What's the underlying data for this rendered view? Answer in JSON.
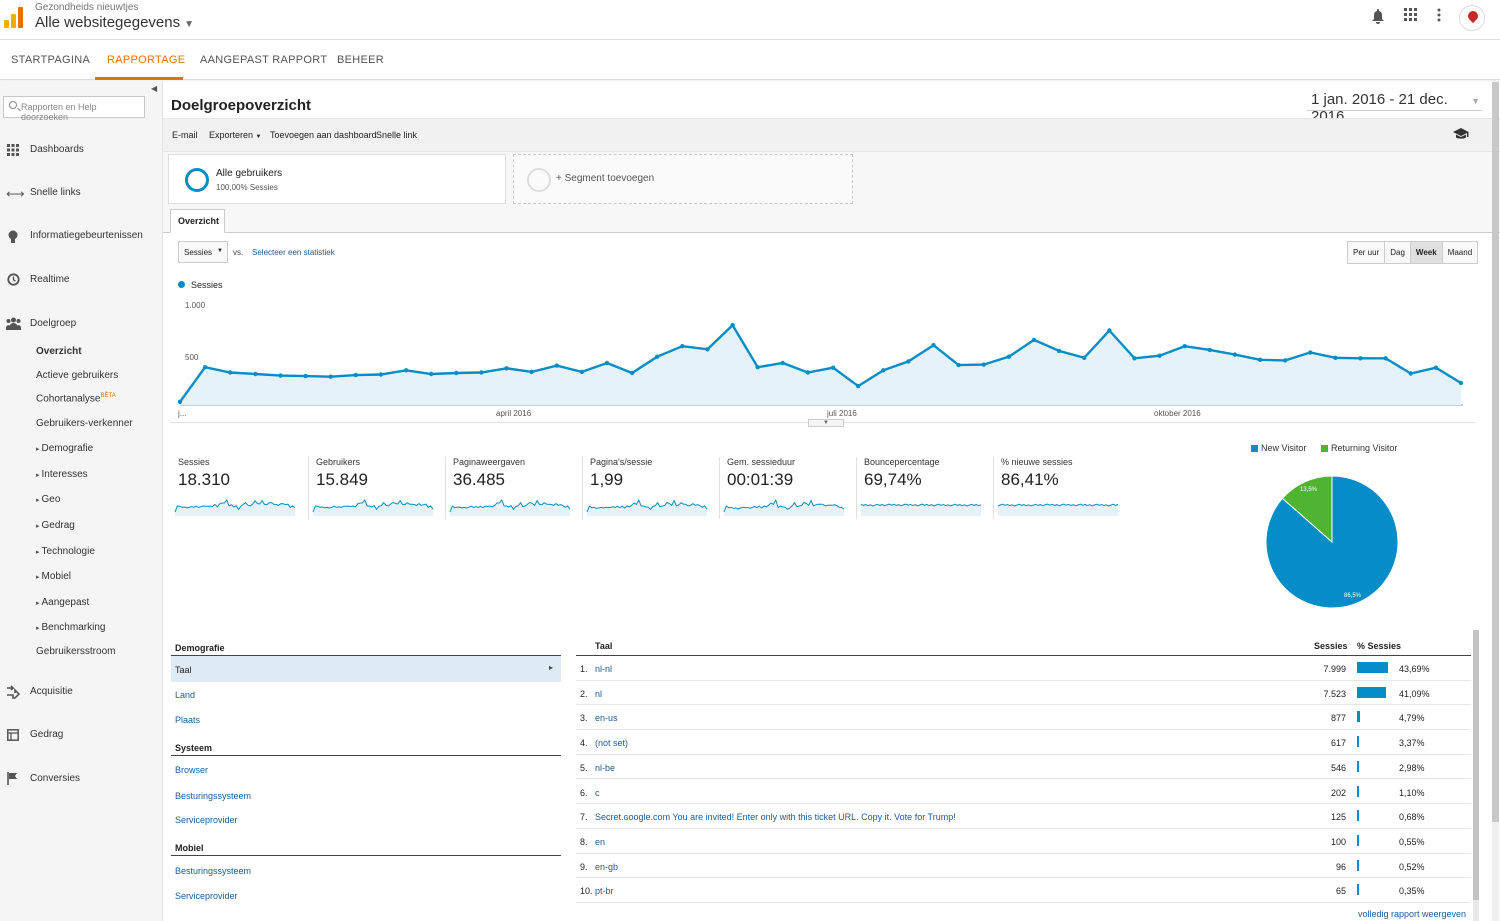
{
  "app": {
    "property_small": "Gezondheids nieuwtjes",
    "property_big": "Alle websitegegevens",
    "brand_colors": {
      "bar1": "#f9ab00",
      "bar2": "#e37400",
      "accent": "#e37400",
      "series": "#058dc7",
      "returning": "#50b432"
    }
  },
  "navtabs": [
    "STARTPAGINA",
    "RAPPORTAGE",
    "AANGEPAST RAPPORT",
    "BEHEER"
  ],
  "sidebar": {
    "search_placeholder": "Rapporten en Help doorzoeken",
    "main": [
      {
        "label": "Dashboards",
        "icon": "grid-icon"
      },
      {
        "label": "Snelle links",
        "icon": "shortcut-arrow-icon"
      },
      {
        "label": "Informatiegebeurtenissen",
        "icon": "lightbulb-icon"
      },
      {
        "label": "Realtime",
        "icon": "clock-icon"
      },
      {
        "label": "Doelgroep",
        "icon": "people-icon"
      }
    ],
    "sub": {
      "overview": "Overzicht",
      "active_users": "Actieve gebruikers",
      "cohort": "Cohortanalyse",
      "cohort_beta": "BÈTA",
      "explorer": "Gebruikers-verkenner",
      "demografie": "Demografie",
      "interesses": "Interesses",
      "geo": "Geo",
      "gedrag": "Gedrag",
      "technologie": "Technologie",
      "mobiel": "Mobiel",
      "aangepast": "Aangepast",
      "benchmarking": "Benchmarking",
      "stroom": "Gebruikersstroom"
    },
    "bottom": [
      {
        "label": "Acquisitie",
        "icon": "acquisition-icon"
      },
      {
        "label": "Gedrag",
        "icon": "behavior-icon"
      },
      {
        "label": "Conversies",
        "icon": "flag-icon"
      }
    ]
  },
  "main": {
    "title": "Doelgroepoverzicht",
    "daterange": "1 jan. 2016 - 21 dec. 2016",
    "toolbar": [
      "E-mail",
      "Exporteren",
      "Toevoegen aan dashboard",
      "Snelle link"
    ],
    "segment1": {
      "title": "Alle gebruikers",
      "sub": "100,00% Sessies"
    },
    "segment2": "+ Segment toevoegen",
    "tab": "Overzicht",
    "metric_select": "Sessies",
    "vs": "vs.",
    "select_stat": "Selecteer een statistiek",
    "granularity": [
      "Per uur",
      "Dag",
      "Week",
      "Maand"
    ]
  },
  "chart_data": {
    "type": "line",
    "title": "",
    "series": [
      {
        "name": "Sessies",
        "values": [
          30,
          360,
          310,
          295,
          280,
          275,
          270,
          285,
          290,
          330,
          295,
          305,
          310,
          350,
          315,
          375,
          315,
          400,
          305,
          460,
          560,
          530,
          760,
          360,
          400,
          310,
          355,
          180,
          330,
          415,
          570,
          380,
          385,
          460,
          620,
          515,
          450,
          710,
          445,
          470,
          560,
          525,
          480,
          430,
          425,
          500,
          450,
          445,
          445,
          300,
          355,
          210
        ]
      }
    ],
    "x_tick_labels": [
      "j...",
      "april 2016",
      "juli 2016",
      "oktober 2016"
    ],
    "y_tick_labels": [
      "1.000",
      "500"
    ],
    "ylim": [
      0,
      1000
    ]
  },
  "metrics": [
    {
      "name": "Sessies",
      "value": "18.310"
    },
    {
      "name": "Gebruikers",
      "value": "15.849"
    },
    {
      "name": "Paginaweergaven",
      "value": "36.485"
    },
    {
      "name": "Pagina's/sessie",
      "value": "1,99"
    },
    {
      "name": "Gem. sessieduur",
      "value": "00:01:39"
    },
    {
      "name": "Bouncepercentage",
      "value": "69,74%"
    },
    {
      "name": "% nieuwe sessies",
      "value": "86,41%"
    }
  ],
  "pie": {
    "legend": [
      "New Visitor",
      "Returning Visitor"
    ],
    "values": [
      86.5,
      13.5
    ],
    "labels": [
      "86,5%",
      "13,5%"
    ]
  },
  "left_panel": {
    "demografie": "Demografie",
    "taal": "Taal",
    "land": "Land",
    "plaats": "Plaats",
    "systeem": "Systeem",
    "browser": "Browser",
    "besturing": "Besturingssysteem",
    "service": "Serviceprovider",
    "mobiel": "Mobiel",
    "m_besturing": "Besturingssysteem",
    "m_service": "Serviceprovider"
  },
  "table": {
    "header": {
      "col1": "Taal",
      "col2": "Sessies",
      "col3": "% Sessies"
    },
    "rows": [
      {
        "n": "1.",
        "label": "nl-nl",
        "sessions": "7.999",
        "pct": "43,69%",
        "frac": 0.4369
      },
      {
        "n": "2.",
        "label": "nl",
        "sessions": "7.523",
        "pct": "41,09%",
        "frac": 0.4109
      },
      {
        "n": "3.",
        "label": "en-us",
        "sessions": "877",
        "pct": "4,79%",
        "frac": 0.0479
      },
      {
        "n": "4.",
        "label": "(not set)",
        "sessions": "617",
        "pct": "3,37%",
        "frac": 0.0337
      },
      {
        "n": "5.",
        "label": "nl-be",
        "sessions": "546",
        "pct": "2,98%",
        "frac": 0.0298
      },
      {
        "n": "6.",
        "label": "c",
        "sessions": "202",
        "pct": "1,10%",
        "frac": 0.011
      },
      {
        "n": "7.",
        "label": "Secret.ɢoogle.com You are invited! Enter only with this ticket URL. Copy it. Vote for Trump!",
        "sessions": "125",
        "pct": "0,68%",
        "frac": 0.0068
      },
      {
        "n": "8.",
        "label": "en",
        "sessions": "100",
        "pct": "0,55%",
        "frac": 0.0055
      },
      {
        "n": "9.",
        "label": "en-gb",
        "sessions": "96",
        "pct": "0,52%",
        "frac": 0.0052
      },
      {
        "n": "10.",
        "label": "pt-br",
        "sessions": "65",
        "pct": "0,35%",
        "frac": 0.0035
      }
    ],
    "more": "volledig rapport weergeven"
  }
}
